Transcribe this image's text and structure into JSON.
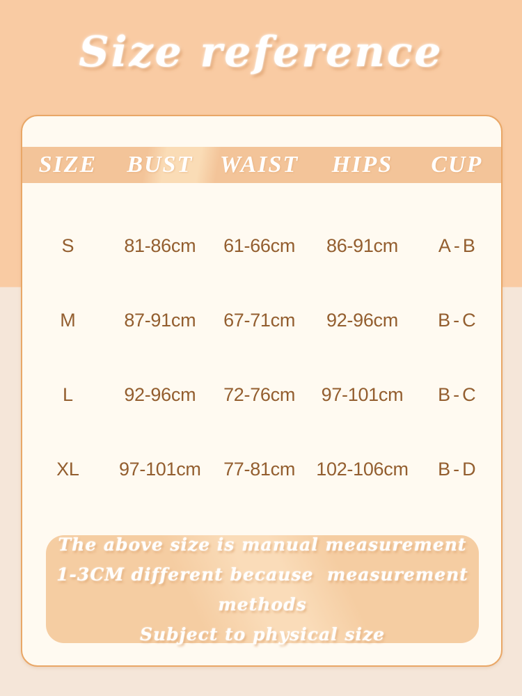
{
  "title": "Size reference",
  "table": {
    "headers": [
      "SIZE",
      "BUST",
      "WAIST",
      "HIPS",
      "CUP"
    ],
    "rows": [
      {
        "size": "S",
        "bust": "81-86cm",
        "waist": "61-66cm",
        "hips": "86-91cm",
        "cup": "A-B"
      },
      {
        "size": "M",
        "bust": "87-91cm",
        "waist": "67-71cm",
        "hips": "92-96cm",
        "cup": "B-C"
      },
      {
        "size": "L",
        "bust": "92-96cm",
        "waist": "72-76cm",
        "hips": "97-101cm",
        "cup": "B-C"
      },
      {
        "size": "XL",
        "bust": "97-101cm",
        "waist": "77-81cm",
        "hips": "102-106cm",
        "cup": "B-D"
      }
    ]
  },
  "note": {
    "line1": "The above size is manual measurement",
    "line2": "1-3CM different because  measurement methods",
    "line3": "Subject to physical size"
  },
  "colors": {
    "background_top": "#f9cba3",
    "background_bottom": "#f5e6d9",
    "card_background": "#fffaf1",
    "card_border": "#e9a767",
    "header_band": "#f3c499",
    "band_shine": "#fadcb6",
    "note_box": "#f5cda2",
    "text_brown": "#935e2f",
    "text_white": "#ffffff"
  }
}
